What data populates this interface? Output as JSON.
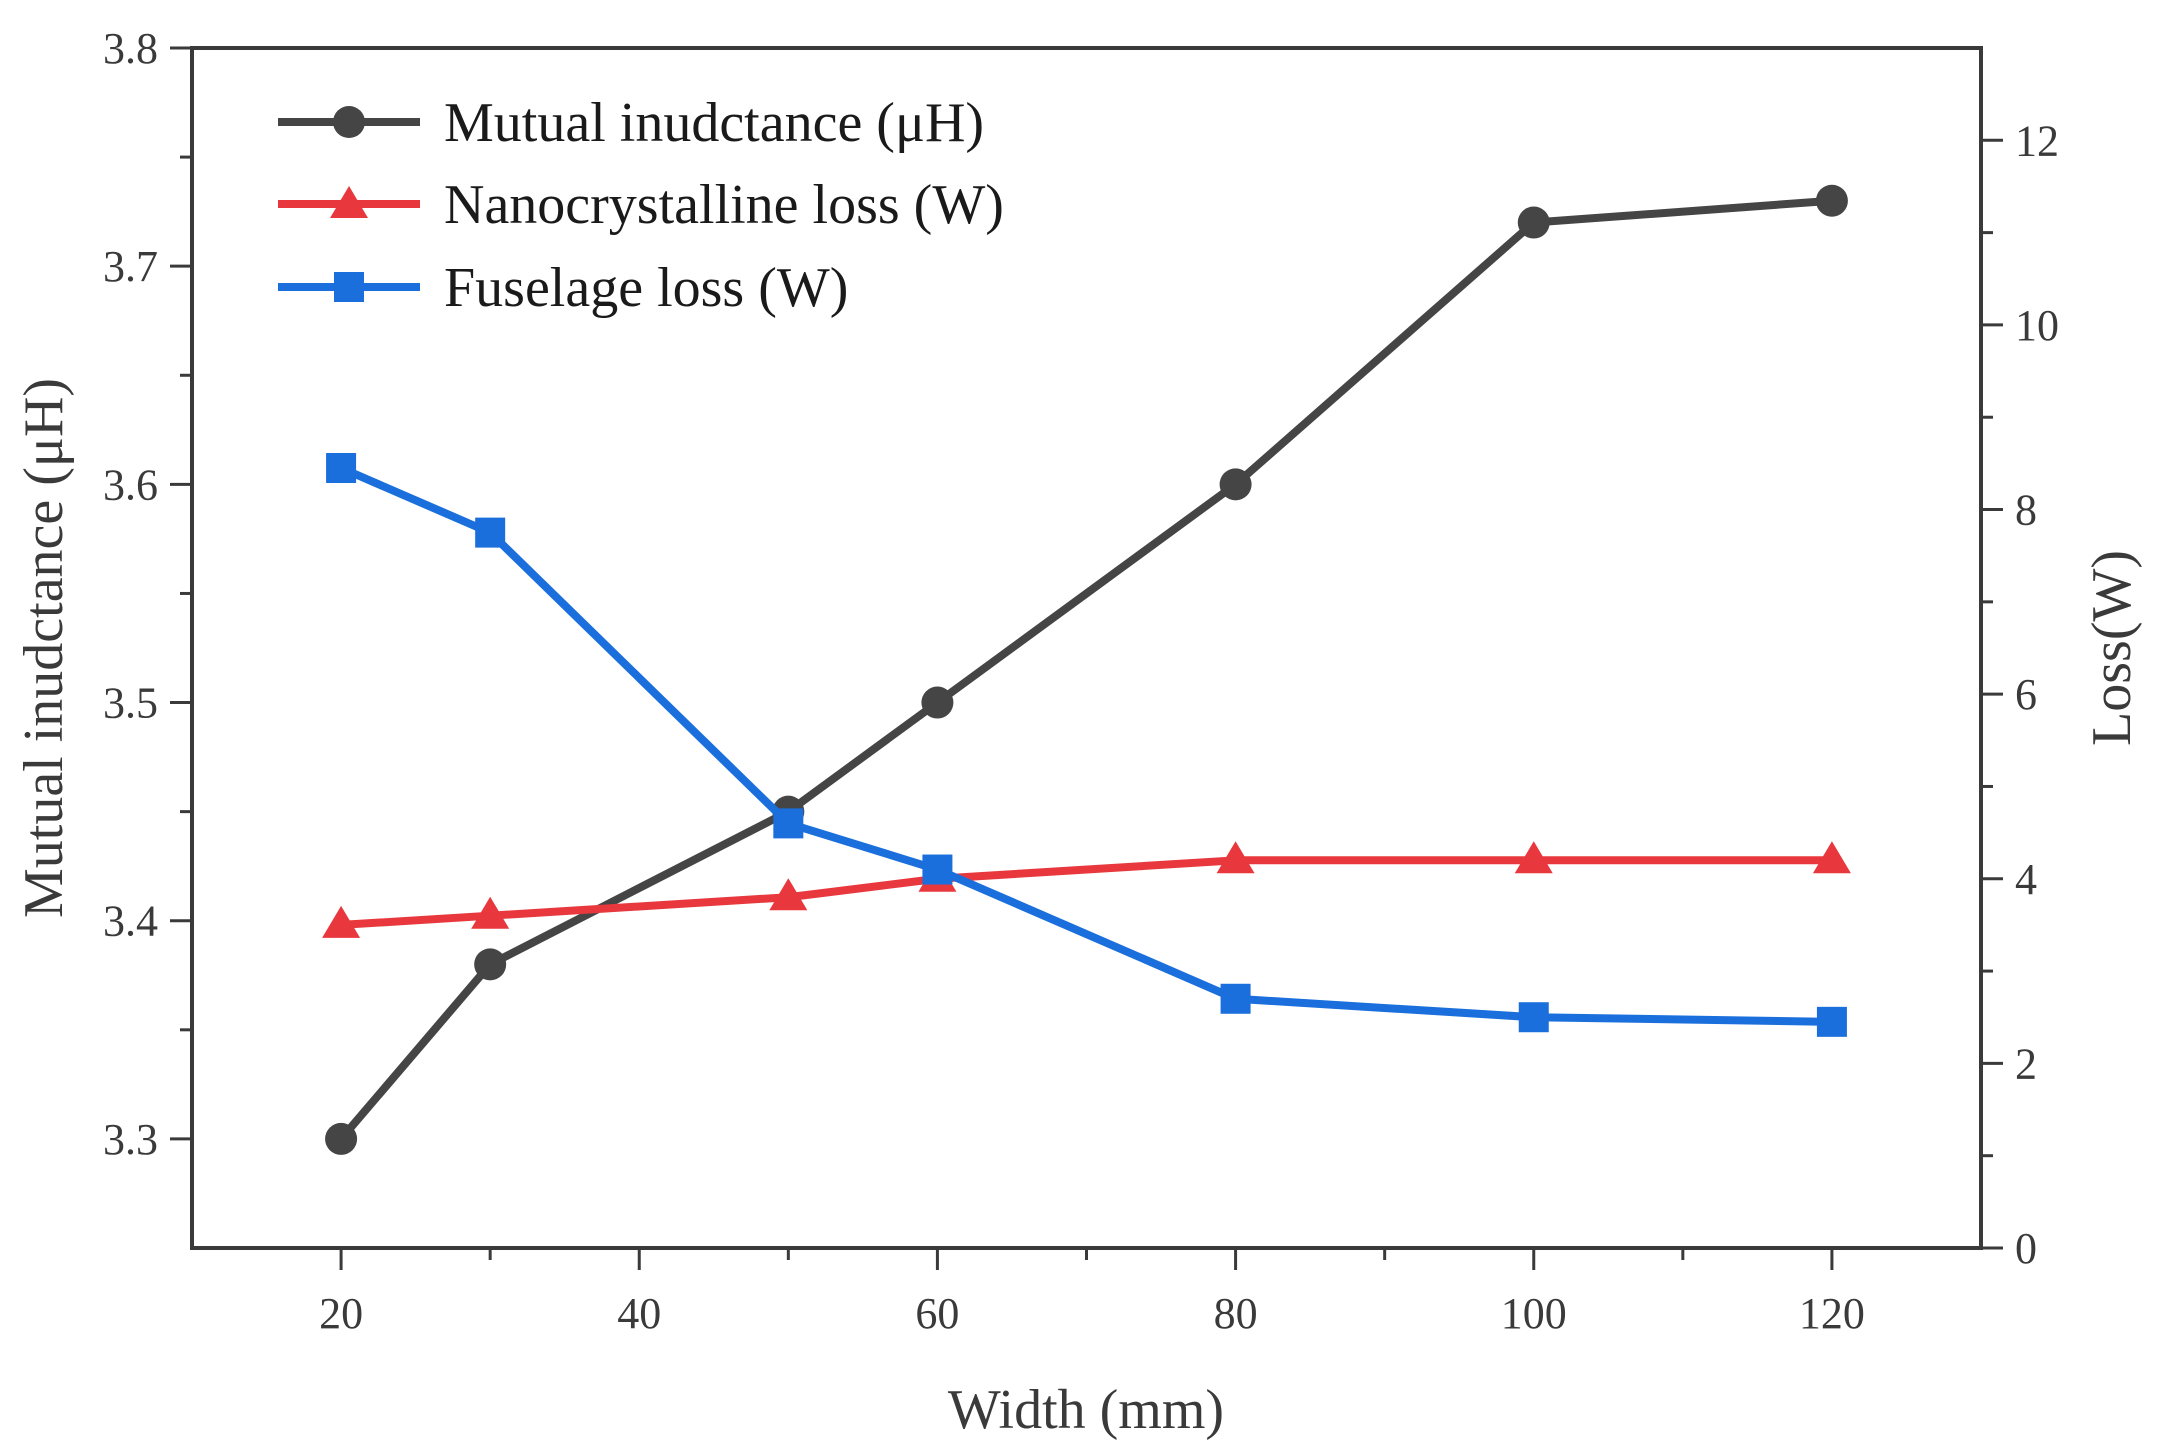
{
  "chart_data": {
    "type": "line",
    "xlabel": "Width (mm)",
    "ylabel_left": "Mutual inudctance (μH)",
    "ylabel_right": "Loss(W)",
    "xlim": [
      10,
      130
    ],
    "ylim_left": [
      3.25,
      3.8
    ],
    "ylim_right": [
      0,
      13
    ],
    "x_ticks": [
      20,
      40,
      60,
      80,
      100,
      120
    ],
    "x_minor_ticks": [
      30,
      50,
      70,
      90,
      110
    ],
    "y_left_ticks": [
      3.3,
      3.4,
      3.5,
      3.6,
      3.7,
      3.8
    ],
    "y_left_minor_ticks": [
      3.35,
      3.45,
      3.55,
      3.65,
      3.75
    ],
    "y_right_ticks": [
      0,
      2,
      4,
      6,
      8,
      10,
      12
    ],
    "y_right_minor_ticks": [
      1,
      3,
      5,
      7,
      9,
      11
    ],
    "legend_position": "top-left",
    "grid": false,
    "series": [
      {
        "name": "Mutual inudctance (μH)",
        "axis": "left",
        "marker": "circle",
        "color": "#454545",
        "x": [
          20,
          30,
          50,
          60,
          80,
          100,
          120
        ],
        "y": [
          3.3,
          3.38,
          3.45,
          3.5,
          3.6,
          3.72,
          3.73
        ]
      },
      {
        "name": "Nanocrystalline loss (W)",
        "axis": "right",
        "marker": "triangle",
        "color": "#e8383d",
        "x": [
          20,
          30,
          50,
          60,
          80,
          100,
          120
        ],
        "y": [
          3.5,
          3.6,
          3.8,
          4.0,
          4.2,
          4.2,
          4.2
        ]
      },
      {
        "name": "Fuselage loss (W)",
        "axis": "right",
        "marker": "square",
        "color": "#1a6fdc",
        "x": [
          20,
          30,
          50,
          60,
          80,
          100,
          120
        ],
        "y": [
          8.45,
          7.75,
          4.6,
          4.1,
          2.7,
          2.5,
          2.45
        ]
      }
    ]
  }
}
